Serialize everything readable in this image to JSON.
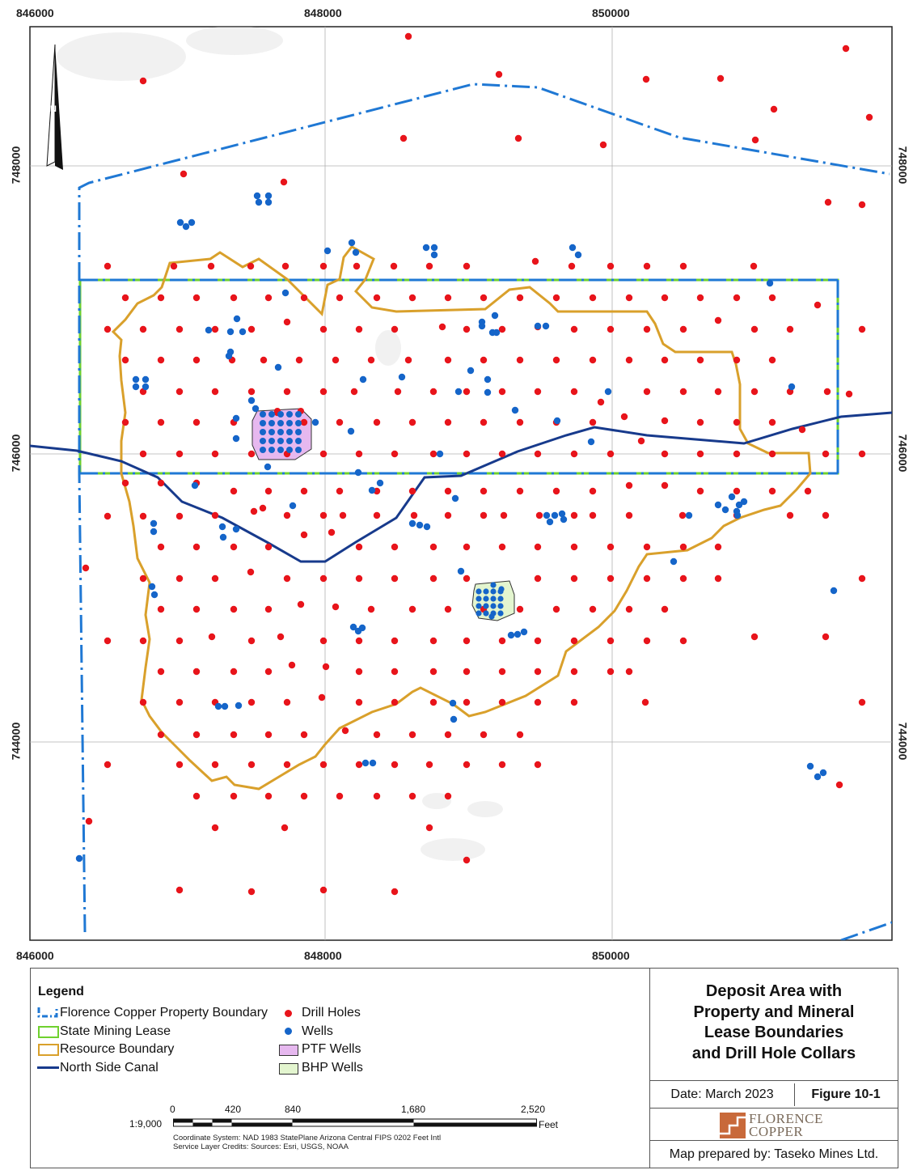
{
  "map": {
    "north_label": "N",
    "x_ticks": [
      "846000",
      "848000",
      "850000"
    ],
    "y_ticks": [
      "748000",
      "746000",
      "744000"
    ],
    "colors": {
      "property_boundary": "#1f78d4",
      "mining_lease": "#6fd12e",
      "resource_boundary": "#d9a02b",
      "canal": "#173a8c",
      "drill_holes": "#e8141b",
      "wells": "#1565c9",
      "ptf_fill": "#e6b8ef",
      "bhp_fill": "#e3f5cf"
    }
  },
  "legend": {
    "title": "Legend",
    "items": [
      {
        "label": "Florence Copper Property Boundary",
        "symbol": "dash-dot-line"
      },
      {
        "label": "State Mining Lease",
        "symbol": "green-box"
      },
      {
        "label": "Resource Boundary",
        "symbol": "orange-box"
      },
      {
        "label": "North Side Canal",
        "symbol": "navy-line"
      },
      {
        "label": "Drill Holes",
        "symbol": "red-dot"
      },
      {
        "label": "Wells",
        "symbol": "blue-dot"
      },
      {
        "label": "PTF Wells",
        "symbol": "purple-box"
      },
      {
        "label": "BHP Wells",
        "symbol": "light-green-box"
      }
    ]
  },
  "scale": {
    "ratio": "1:9,000",
    "ticks": [
      "0",
      "420",
      "840",
      "1,680",
      "2,520"
    ],
    "unit": "Feet"
  },
  "credits": {
    "coordinate_system": "Coordinate System: NAD 1983 StatePlane Arizona Central FIPS 0202 Feet Intl",
    "service_layer": "Service Layer Credits: Sources: Esri, USGS, NOAA"
  },
  "title_block": {
    "title_lines": [
      "Deposit Area with",
      "Property and Mineral",
      "Lease Boundaries",
      "and Drill Hole Collars"
    ],
    "date": "Date: March 2023",
    "figure": "Figure 10-1",
    "logo_line1": "FLORENCE",
    "logo_line2": "COPPER",
    "prepared_by": "Map prepared by: Taseko Mines Ltd."
  }
}
